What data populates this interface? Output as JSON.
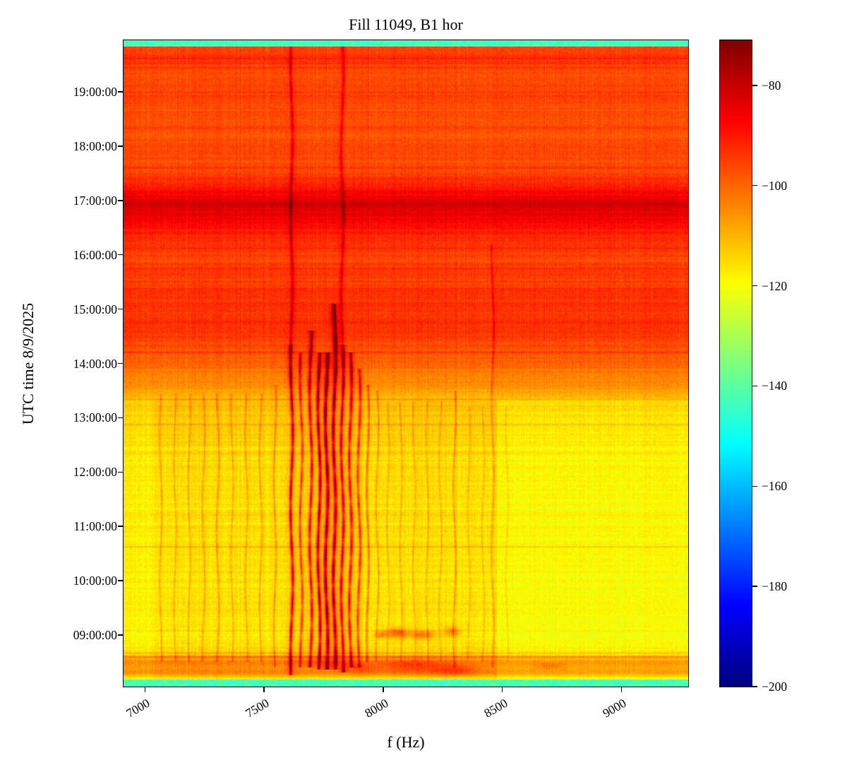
{
  "chart_data": {
    "type": "heatmap",
    "subtype": "spectrogram",
    "title": "Fill 11049, B1 hor",
    "xlabel": "f (Hz)",
    "ylabel": "UTC time 8/9/2025",
    "x_range_hz": [
      6910,
      9280
    ],
    "x_ticks": [
      7000,
      7500,
      8000,
      8500,
      9000
    ],
    "y_range_hours": [
      8.05,
      19.95
    ],
    "y_ticks": [
      {
        "hour": 9,
        "label": "09:00:00"
      },
      {
        "hour": 10,
        "label": "10:00:00"
      },
      {
        "hour": 11,
        "label": "11:00:00"
      },
      {
        "hour": 12,
        "label": "12:00:00"
      },
      {
        "hour": 13,
        "label": "13:00:00"
      },
      {
        "hour": 14,
        "label": "14:00:00"
      },
      {
        "hour": 15,
        "label": "15:00:00"
      },
      {
        "hour": 16,
        "label": "16:00:00"
      },
      {
        "hour": 17,
        "label": "17:00:00"
      },
      {
        "hour": 18,
        "label": "18:00:00"
      },
      {
        "hour": 19,
        "label": "19:00:00"
      }
    ],
    "colormap": "jet",
    "colorbar": {
      "vmin": -200,
      "vmax": -71,
      "ticks": [
        -80,
        -100,
        -120,
        -140,
        -160,
        -180,
        -200
      ]
    },
    "features": [
      "Dense cluster of strong dark-red vertical harmonic lines between ~7600 and ~7950 Hz, most intense from ~08:30 to ~14:00",
      "Two vertical lines near 7615 Hz and 7830 Hz persist over the whole time span",
      "Weaker vertical lines spaced ~60 Hz across 7050-8500 Hz below ~13:30",
      "Background level rises from yellow (~-115) before ~13:30 to orange-red (~-95) after ~14:00",
      "Dark red horizontal band (~-82) around 16:40-17:10",
      "Thin cyan bands at the very top and bottom edges (~-143)",
      "Noisy orange band with red blotches around 08:20-08:35 and red blobs near 8000-8300 Hz around 09:00",
      "Thin darker horizontal lines at ~08:35, ~10:37, ~12:52, ~13:20 and ~19:00"
    ],
    "render_model": {
      "upper_fade_t": 14.35,
      "edge": {
        "bottom_t": 8.17,
        "top_t": 19.84,
        "value": -143,
        "noise": 7
      },
      "base_profile": [
        [
          8.17,
          -118
        ],
        [
          8.3,
          -104
        ],
        [
          8.5,
          -103
        ],
        [
          8.64,
          -113
        ],
        [
          8.9,
          -116
        ],
        [
          10.5,
          -116
        ],
        [
          12.4,
          -115
        ],
        [
          13.2,
          -112
        ],
        [
          13.6,
          -106
        ],
        [
          14.1,
          -99
        ],
        [
          14.55,
          -94
        ],
        [
          15.1,
          -93
        ],
        [
          15.9,
          -95
        ],
        [
          16.45,
          -91
        ],
        [
          16.7,
          -85
        ],
        [
          16.95,
          -82
        ],
        [
          17.15,
          -87
        ],
        [
          17.5,
          -96
        ],
        [
          18.2,
          -97
        ],
        [
          18.9,
          -96
        ],
        [
          19.35,
          -97
        ],
        [
          19.6,
          -94
        ],
        [
          19.84,
          -95
        ]
      ],
      "low_region": {
        "t_max": 13.35,
        "right_f": 8480,
        "right_delta": -3.5,
        "left_f": 7040,
        "left_delta": -2
      },
      "wiggle": {
        "amp": 5,
        "freq": 2.3
      },
      "vlines": [
        {
          "f": 7065,
          "w": 4,
          "s": 7,
          "t0": 8.5,
          "t1": 13.45
        },
        {
          "f": 7125,
          "w": 4,
          "s": 7,
          "t0": 8.5,
          "t1": 13.45
        },
        {
          "f": 7185,
          "w": 4,
          "s": 7,
          "t0": 8.5,
          "t1": 13.45
        },
        {
          "f": 7245,
          "w": 4,
          "s": 7,
          "t0": 8.5,
          "t1": 13.45
        },
        {
          "f": 7305,
          "w": 4,
          "s": 8,
          "t0": 8.5,
          "t1": 13.45
        },
        {
          "f": 7365,
          "w": 4,
          "s": 7,
          "t0": 8.5,
          "t1": 13.45
        },
        {
          "f": 7425,
          "w": 4,
          "s": 7,
          "t0": 8.5,
          "t1": 13.45
        },
        {
          "f": 7485,
          "w": 4,
          "s": 8,
          "t0": 8.5,
          "t1": 13.45
        },
        {
          "f": 7545,
          "w": 4,
          "s": 9,
          "t0": 8.4,
          "t1": 13.6
        },
        {
          "f": 7615,
          "w": 6,
          "s": 22,
          "sh": 9,
          "t0": 8.25,
          "t1": 19.84
        },
        {
          "f": 7655,
          "w": 5,
          "s": 15,
          "t0": 8.4,
          "t1": 14.2
        },
        {
          "f": 7695,
          "w": 6,
          "s": 20,
          "t0": 8.4,
          "t1": 14.6
        },
        {
          "f": 7730,
          "w": 6,
          "s": 26,
          "t0": 8.35,
          "t1": 14.2
        },
        {
          "f": 7762,
          "w": 7,
          "s": 28,
          "t0": 8.35,
          "t1": 14.2
        },
        {
          "f": 7795,
          "w": 7,
          "s": 26,
          "t0": 8.35,
          "t1": 15.1
        },
        {
          "f": 7828,
          "w": 6,
          "s": 22,
          "sh": 8,
          "t0": 8.3,
          "t1": 19.84
        },
        {
          "f": 7862,
          "w": 6,
          "s": 20,
          "t0": 8.4,
          "t1": 14.2
        },
        {
          "f": 7898,
          "w": 5,
          "s": 16,
          "t0": 8.4,
          "t1": 13.9
        },
        {
          "f": 7935,
          "w": 5,
          "s": 12,
          "t0": 8.5,
          "t1": 13.6
        },
        {
          "f": 7975,
          "w": 4,
          "s": 9,
          "t0": 8.5,
          "t1": 13.5
        },
        {
          "f": 8020,
          "w": 4,
          "s": 6,
          "t0": 8.5,
          "t1": 13.3
        },
        {
          "f": 8075,
          "w": 4,
          "s": 6,
          "t0": 8.5,
          "t1": 13.3
        },
        {
          "f": 8130,
          "w": 4,
          "s": 6,
          "t0": 8.5,
          "t1": 13.3
        },
        {
          "f": 8185,
          "w": 4,
          "s": 6,
          "t0": 8.5,
          "t1": 13.3
        },
        {
          "f": 8240,
          "w": 4,
          "s": 6,
          "t0": 8.5,
          "t1": 13.3
        },
        {
          "f": 8300,
          "w": 4,
          "s": 9,
          "t0": 8.4,
          "t1": 13.5
        },
        {
          "f": 8360,
          "w": 4,
          "s": 5,
          "t0": 8.5,
          "t1": 13.2
        },
        {
          "f": 8420,
          "w": 4,
          "s": 5,
          "t0": 8.5,
          "t1": 13.2
        },
        {
          "f": 8460,
          "w": 5,
          "s": 7,
          "t0": 8.4,
          "t1": 16.2
        },
        {
          "f": 8520,
          "w": 4,
          "s": 5,
          "t0": 8.5,
          "t1": 13.2
        }
      ],
      "hlines": [
        {
          "t": 8.595,
          "w": 0.022,
          "s": 9
        },
        {
          "t": 8.66,
          "w": 0.015,
          "s": 6
        },
        {
          "t": 9.07,
          "w": 0.012,
          "s": 4
        },
        {
          "t": 10.62,
          "w": 0.015,
          "s": 6
        },
        {
          "t": 11.2,
          "w": 0.01,
          "s": 3
        },
        {
          "t": 12.2,
          "w": 0.01,
          "s": 3
        },
        {
          "t": 12.55,
          "w": 0.012,
          "s": 4
        },
        {
          "t": 12.87,
          "w": 0.015,
          "s": 5
        },
        {
          "t": 13.34,
          "w": 0.015,
          "s": 5
        },
        {
          "t": 14.2,
          "w": 0.012,
          "s": 3
        },
        {
          "t": 16.12,
          "w": 0.012,
          "s": 3
        },
        {
          "t": 17.6,
          "w": 0.01,
          "s": 3
        },
        {
          "t": 19.0,
          "w": 0.012,
          "s": 4
        },
        {
          "t": 19.45,
          "w": 0.01,
          "s": 3
        },
        {
          "t": 19.62,
          "w": 0.012,
          "s": 4
        }
      ],
      "blobs": [
        {
          "f": 8060,
          "t": 9.03,
          "df": 45,
          "dt": 0.09,
          "s": 18
        },
        {
          "f": 8165,
          "t": 9.0,
          "df": 55,
          "dt": 0.08,
          "s": 15
        },
        {
          "f": 8290,
          "t": 9.05,
          "df": 35,
          "dt": 0.09,
          "s": 13
        },
        {
          "f": 7990,
          "t": 9.0,
          "df": 30,
          "dt": 0.07,
          "s": 12
        },
        {
          "f": 8120,
          "t": 8.42,
          "df": 140,
          "dt": 0.12,
          "s": 10
        },
        {
          "f": 8300,
          "t": 8.35,
          "df": 90,
          "dt": 0.1,
          "s": 10
        },
        {
          "f": 7900,
          "t": 8.38,
          "df": 70,
          "dt": 0.08,
          "s": 8
        },
        {
          "f": 8700,
          "t": 8.42,
          "df": 60,
          "dt": 0.06,
          "s": 6
        }
      ],
      "noise": {
        "pixel": 3.0,
        "row": 3.0,
        "col": 1.6
      }
    }
  }
}
